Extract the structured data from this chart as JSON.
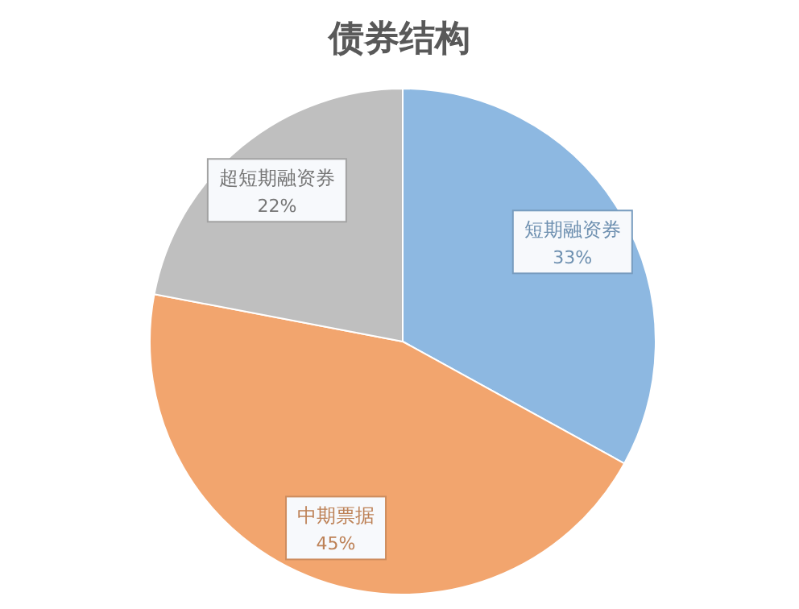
{
  "chart_data": {
    "type": "pie",
    "title": "债券结构",
    "categories": [
      "短期融资券",
      "中期票据",
      "超短期融资券"
    ],
    "values": [
      33,
      45,
      22
    ],
    "colors": [
      "#8db8e1",
      "#f2a56e",
      "#bfbfbf"
    ],
    "value_labels": [
      "33%",
      "45%",
      "22%"
    ]
  }
}
